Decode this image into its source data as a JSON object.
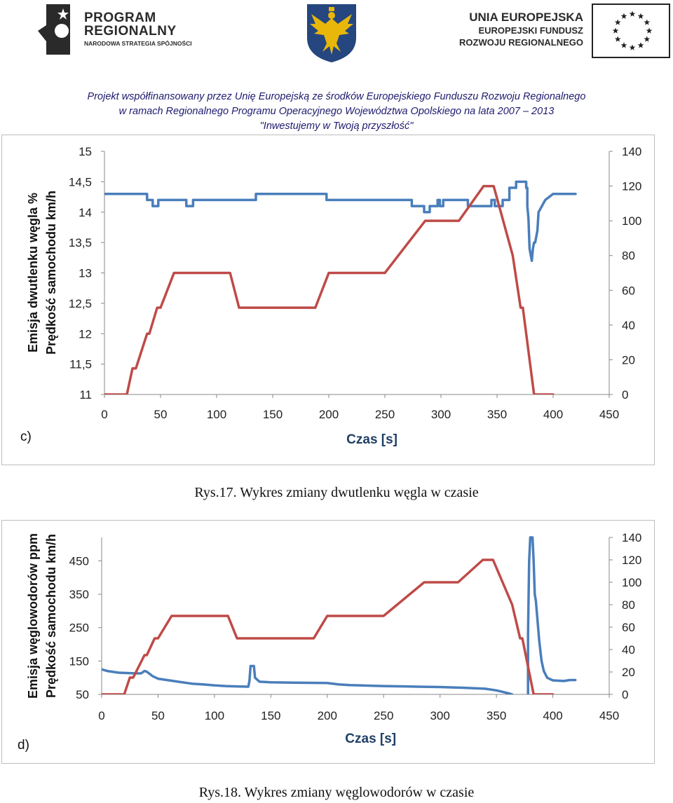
{
  "header": {
    "program_title_1": "PROGRAM",
    "program_title_2": "REGIONALNY",
    "program_subtitle": "NARODOWA STRATEGIA SPÓJNOŚCI",
    "eu_line1": "UNIA EUROPEJSKA",
    "eu_line2": "EUROPEJSKI FUNDUSZ",
    "eu_line3": "ROZWOJU REGIONALNEGO",
    "project_line1": "Projekt współfinansowany przez Unię Europejską ze środków Europejskiego Funduszu Rozwoju Regionalnego",
    "project_line2": "w ramach Regionalnego Programu Operacyjnego Województwa Opolskiego na lata 2007 – 2013",
    "project_line3": "\"Inwestujemy w Twoją przyszłość\""
  },
  "colors": {
    "series1": "#4a7ebb",
    "speed": "#be4b48",
    "eu_blue": "#ffffff",
    "coat_blue": "#25467f",
    "coat_gold": "#e8b70a"
  },
  "chart_data": [
    {
      "type": "line",
      "panel_label": "c)",
      "xlabel": "Czas [s]",
      "ylabel_left_1": "Emisja dwutlenku węgla   %",
      "ylabel_left_2": "Prędkość samochodu   km/h",
      "xlim": [
        0,
        450
      ],
      "x_ticks": [
        0,
        50,
        100,
        150,
        200,
        250,
        300,
        350,
        400,
        450
      ],
      "y_left_lim": [
        11,
        15
      ],
      "y_left_ticks": [
        "11",
        "11,5",
        "12",
        "12,5",
        "13",
        "13,5",
        "14",
        "14,5",
        "15"
      ],
      "y_right_lim": [
        0,
        140
      ],
      "y_right_ticks": [
        0,
        20,
        40,
        60,
        80,
        100,
        120,
        140
      ],
      "grid": false,
      "series": [
        {
          "axis": "left",
          "points": [
            [
              0,
              14.3
            ],
            [
              38,
              14.3
            ],
            [
              38,
              14.2
            ],
            [
              43,
              14.2
            ],
            [
              43,
              14.1
            ],
            [
              48,
              14.1
            ],
            [
              48,
              14.2
            ],
            [
              73,
              14.2
            ],
            [
              73,
              14.1
            ],
            [
              79,
              14.1
            ],
            [
              79,
              14.2
            ],
            [
              135,
              14.2
            ],
            [
              135,
              14.3
            ],
            [
              198,
              14.3
            ],
            [
              198,
              14.2
            ],
            [
              274,
              14.2
            ],
            [
              274,
              14.1
            ],
            [
              285,
              14.1
            ],
            [
              285,
              14.0
            ],
            [
              290,
              14.0
            ],
            [
              290,
              14.1
            ],
            [
              297,
              14.1
            ],
            [
              297,
              14.2
            ],
            [
              299,
              14.2
            ],
            [
              299,
              14.1
            ],
            [
              302,
              14.1
            ],
            [
              302,
              14.2
            ],
            [
              324,
              14.2
            ],
            [
              324,
              14.1
            ],
            [
              345,
              14.1
            ],
            [
              345,
              14.2
            ],
            [
              348,
              14.2
            ],
            [
              348,
              14.1
            ],
            [
              355,
              14.1
            ],
            [
              355,
              14.2
            ],
            [
              361,
              14.2
            ],
            [
              361,
              14.4
            ],
            [
              367,
              14.4
            ],
            [
              367,
              14.5
            ],
            [
              376,
              14.5
            ],
            [
              376,
              14.4
            ],
            [
              377,
              14.4
            ],
            [
              377,
              14.1
            ],
            [
              378,
              13.9
            ],
            [
              379,
              13.4
            ],
            [
              380,
              13.3
            ],
            [
              381,
              13.2
            ],
            [
              382,
              13.4
            ],
            [
              383,
              13.5
            ],
            [
              384,
              13.5
            ],
            [
              385,
              13.6
            ],
            [
              386,
              13.7
            ],
            [
              387,
              14.0
            ],
            [
              390,
              14.1
            ],
            [
              393,
              14.2
            ],
            [
              400,
              14.3
            ],
            [
              420,
              14.3
            ]
          ]
        },
        {
          "axis": "right",
          "name": "",
          "points": [
            [
              0,
              0
            ],
            [
              20,
              0
            ],
            [
              25,
              15
            ],
            [
              28,
              15
            ],
            [
              38,
              35
            ],
            [
              40,
              35
            ],
            [
              47,
              50
            ],
            [
              50,
              50
            ],
            [
              62,
              70
            ],
            [
              112,
              70
            ],
            [
              120,
              50
            ],
            [
              188,
              50
            ],
            [
              200,
              70
            ],
            [
              250,
              70
            ],
            [
              286,
              100
            ],
            [
              316,
              100
            ],
            [
              338,
              120
            ],
            [
              347,
              120
            ],
            [
              364,
              80
            ],
            [
              371,
              50
            ],
            [
              373,
              50
            ],
            [
              383,
              0
            ],
            [
              400,
              0
            ]
          ]
        }
      ]
    },
    {
      "type": "line",
      "panel_label": "d)",
      "xlabel": "Czas [s]",
      "ylabel_left_1": "Emisja węglowodorów   ppm",
      "ylabel_left_2": "Prędkość samochodu   km/h",
      "xlim": [
        0,
        450
      ],
      "x_ticks": [
        0,
        50,
        100,
        150,
        200,
        250,
        300,
        350,
        400,
        450
      ],
      "y_left_lim": [
        50,
        520
      ],
      "y_left_ticks": [
        "50",
        "150",
        "250",
        "350",
        "450"
      ],
      "y_right_lim": [
        0,
        140
      ],
      "y_right_ticks": [
        0,
        20,
        40,
        60,
        80,
        100,
        120,
        140
      ],
      "grid": false,
      "series": [
        {
          "axis": "left",
          "points": [
            [
              0,
              125
            ],
            [
              5,
              120
            ],
            [
              15,
              115
            ],
            [
              30,
              113
            ],
            [
              35,
              113
            ],
            [
              38,
              120
            ],
            [
              40,
              118
            ],
            [
              45,
              105
            ],
            [
              50,
              97
            ],
            [
              60,
              92
            ],
            [
              70,
              87
            ],
            [
              80,
              82
            ],
            [
              90,
              80
            ],
            [
              100,
              77
            ],
            [
              110,
              75
            ],
            [
              120,
              74
            ],
            [
              130,
              73
            ],
            [
              131,
              90
            ],
            [
              132,
              135
            ],
            [
              135,
              135
            ],
            [
              136,
              100
            ],
            [
              140,
              88
            ],
            [
              150,
              86
            ],
            [
              170,
              85
            ],
            [
              200,
              84
            ],
            [
              210,
              80
            ],
            [
              220,
              78
            ],
            [
              250,
              75
            ],
            [
              270,
              74
            ],
            [
              280,
              73
            ],
            [
              300,
              72
            ],
            [
              320,
              70
            ],
            [
              340,
              67
            ],
            [
              350,
              62
            ],
            [
              355,
              58
            ],
            [
              362,
              52
            ],
            [
              364,
              50
            ]
          ]
        },
        {
          "axis": "left",
          "points": [
            [
              378,
              50
            ],
            [
              378,
              230
            ],
            [
              379,
              450
            ],
            [
              380,
              520
            ],
            [
              382,
              520
            ],
            [
              383,
              450
            ],
            [
              384,
              350
            ],
            [
              385,
              330
            ],
            [
              387,
              250
            ],
            [
              388,
              210
            ],
            [
              390,
              150
            ],
            [
              392,
              120
            ],
            [
              395,
              100
            ],
            [
              400,
              92
            ],
            [
              410,
              90
            ],
            [
              415,
              93
            ],
            [
              420,
              93
            ]
          ]
        },
        {
          "axis": "right",
          "name": "",
          "points": [
            [
              0,
              0
            ],
            [
              20,
              0
            ],
            [
              25,
              15
            ],
            [
              28,
              15
            ],
            [
              38,
              35
            ],
            [
              40,
              35
            ],
            [
              47,
              50
            ],
            [
              50,
              50
            ],
            [
              62,
              70
            ],
            [
              112,
              70
            ],
            [
              120,
              50
            ],
            [
              188,
              50
            ],
            [
              200,
              70
            ],
            [
              250,
              70
            ],
            [
              286,
              100
            ],
            [
              316,
              100
            ],
            [
              338,
              120
            ],
            [
              347,
              120
            ],
            [
              364,
              80
            ],
            [
              371,
              50
            ],
            [
              373,
              50
            ],
            [
              383,
              0
            ],
            [
              400,
              0
            ]
          ]
        }
      ]
    }
  ],
  "captions": {
    "fig17": "Rys.17. Wykres zmiany dwutlenku węgla w czasie",
    "fig18": "Rys.18. Wykres zmiany węglowodorów w czasie"
  }
}
